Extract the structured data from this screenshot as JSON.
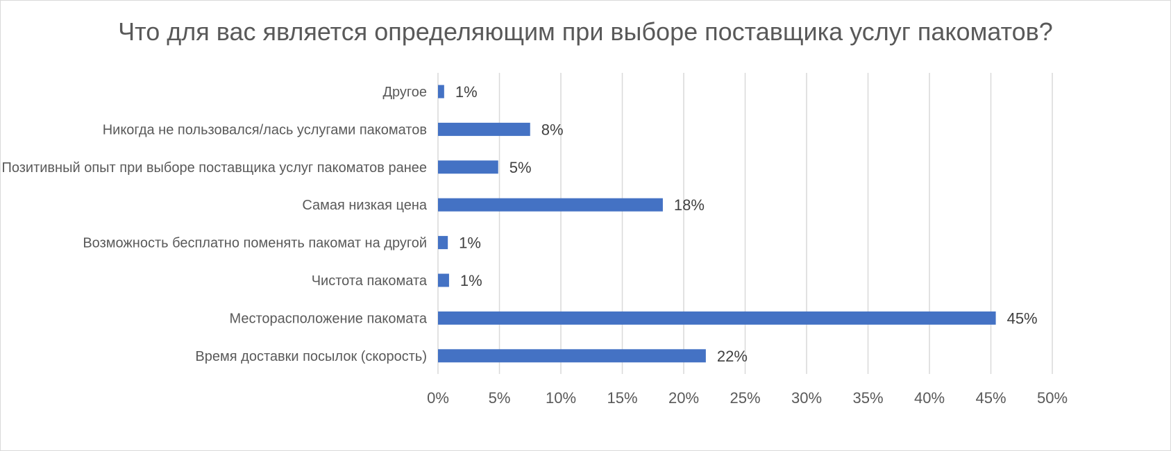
{
  "chart_data": {
    "type": "bar",
    "orientation": "horizontal",
    "title": "Что для вас является определяющим при выборе поставщика услуг пакоматов?",
    "categories": [
      "Другое",
      "Никогда не пользовался/лась услугами пакоматов",
      "Позитивный опыт при выборе поставщика услуг пакоматов ранее",
      "Самая низкая цена",
      "Возможность бесплатно поменять пакомат на другой",
      "Чистота пакомата",
      "Месторасположение пакомата",
      "Время доставки посылок (скорость)"
    ],
    "values": [
      0.5,
      7.5,
      4.9,
      18.3,
      0.8,
      0.9,
      45.4,
      21.8
    ],
    "data_labels": [
      "1%",
      "8%",
      "5%",
      "18%",
      "1%",
      "1%",
      "45%",
      "22%"
    ],
    "xlim": [
      0,
      50
    ],
    "x_ticks": [
      0,
      5,
      10,
      15,
      20,
      25,
      30,
      35,
      40,
      45,
      50
    ],
    "x_tick_labels": [
      "0%",
      "5%",
      "10%",
      "15%",
      "20%",
      "25%",
      "30%",
      "35%",
      "40%",
      "45%",
      "50%"
    ],
    "grid": "vertical",
    "legend": "none",
    "colors": {
      "bar": "#4472C4",
      "grid": "#d9d9d9",
      "text": "#595959"
    }
  }
}
